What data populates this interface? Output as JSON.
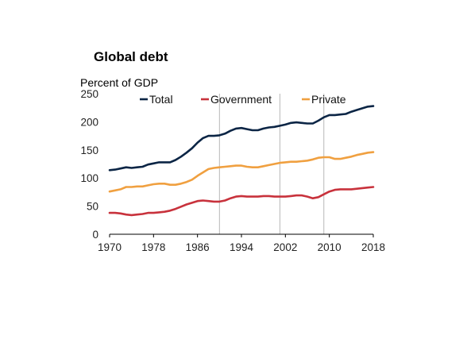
{
  "chart_data": {
    "type": "line",
    "title": "Global debt",
    "ylabel": "Percent of GDP",
    "xlabel": "",
    "ylim": [
      0,
      250
    ],
    "xlim": [
      1970,
      2018
    ],
    "y_ticks": [
      "0",
      "50",
      "100",
      "150",
      "200",
      "250"
    ],
    "x_ticks": [
      "1970",
      "1978",
      "1986",
      "1994",
      "2002",
      "2010",
      "2018"
    ],
    "vertical_reference_lines": [
      1990,
      2001,
      2009
    ],
    "grid": false,
    "legend_placement": "top",
    "x": [
      1970,
      1971,
      1972,
      1973,
      1974,
      1975,
      1976,
      1977,
      1978,
      1979,
      1980,
      1981,
      1982,
      1983,
      1984,
      1985,
      1986,
      1987,
      1988,
      1989,
      1990,
      1991,
      1992,
      1993,
      1994,
      1995,
      1996,
      1997,
      1998,
      1999,
      2000,
      2001,
      2002,
      2003,
      2004,
      2005,
      2006,
      2007,
      2008,
      2009,
      2010,
      2011,
      2012,
      2013,
      2014,
      2015,
      2016,
      2017,
      2018
    ],
    "series": [
      {
        "name": "Total",
        "color": "#0b2545",
        "values": [
          114,
          115,
          117,
          119,
          118,
          119,
          120,
          124,
          126,
          128,
          128,
          128,
          132,
          138,
          145,
          153,
          163,
          171,
          175,
          175,
          176,
          179,
          184,
          188,
          189,
          187,
          185,
          185,
          188,
          190,
          191,
          193,
          195,
          198,
          199,
          198,
          197,
          197,
          202,
          208,
          212,
          212,
          213,
          214,
          218,
          221,
          224,
          227,
          228
        ]
      },
      {
        "name": "Government",
        "color": "#c8323c",
        "values": [
          38,
          38,
          37,
          35,
          34,
          35,
          36,
          38,
          38,
          39,
          40,
          42,
          45,
          49,
          53,
          56,
          59,
          60,
          59,
          58,
          58,
          60,
          64,
          67,
          68,
          67,
          67,
          67,
          68,
          68,
          67,
          67,
          67,
          68,
          69,
          69,
          67,
          64,
          66,
          71,
          76,
          79,
          80,
          80,
          80,
          81,
          82,
          83,
          84
        ]
      },
      {
        "name": "Private",
        "color": "#f0a040",
        "values": [
          76,
          78,
          80,
          84,
          84,
          85,
          85,
          87,
          89,
          90,
          90,
          88,
          88,
          90,
          93,
          97,
          104,
          110,
          116,
          118,
          119,
          120,
          121,
          122,
          122,
          120,
          119,
          119,
          121,
          123,
          125,
          127,
          128,
          129,
          129,
          130,
          131,
          133,
          136,
          137,
          137,
          134,
          134,
          136,
          138,
          141,
          143,
          145,
          146
        ]
      }
    ]
  }
}
